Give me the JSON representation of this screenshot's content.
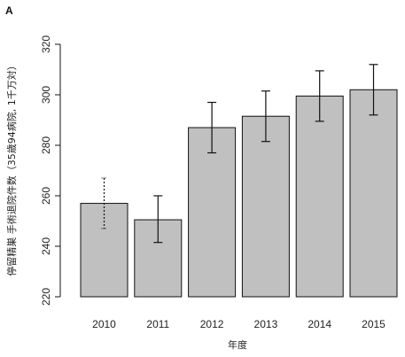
{
  "panel_label": "A",
  "chart_data": {
    "type": "bar",
    "categories": [
      "2010",
      "2011",
      "2012",
      "2013",
      "2014",
      "2015"
    ],
    "values": [
      257,
      250.5,
      287,
      291.5,
      299.5,
      302
    ],
    "error_bars": {
      "upper": [
        267,
        260,
        297,
        301.5,
        309.5,
        312
      ],
      "lower": [
        247,
        241.5,
        277,
        281.5,
        289.5,
        292
      ],
      "styles": [
        "dotted",
        "solid",
        "solid",
        "solid",
        "solid",
        "solid"
      ]
    },
    "title": "",
    "xlabel": "年度",
    "ylabel": "停留精巣 手術退院件数（35歳94病院, 1千万対）",
    "ylim": [
      220,
      320
    ],
    "yticks": [
      "220",
      "240",
      "260",
      "280",
      "300",
      "320"
    ],
    "grid": false,
    "colors": {
      "bar_fill": "#c0c0c0",
      "bar_stroke": "#111111",
      "error_bar": "#111111",
      "axis": "#111111"
    }
  }
}
